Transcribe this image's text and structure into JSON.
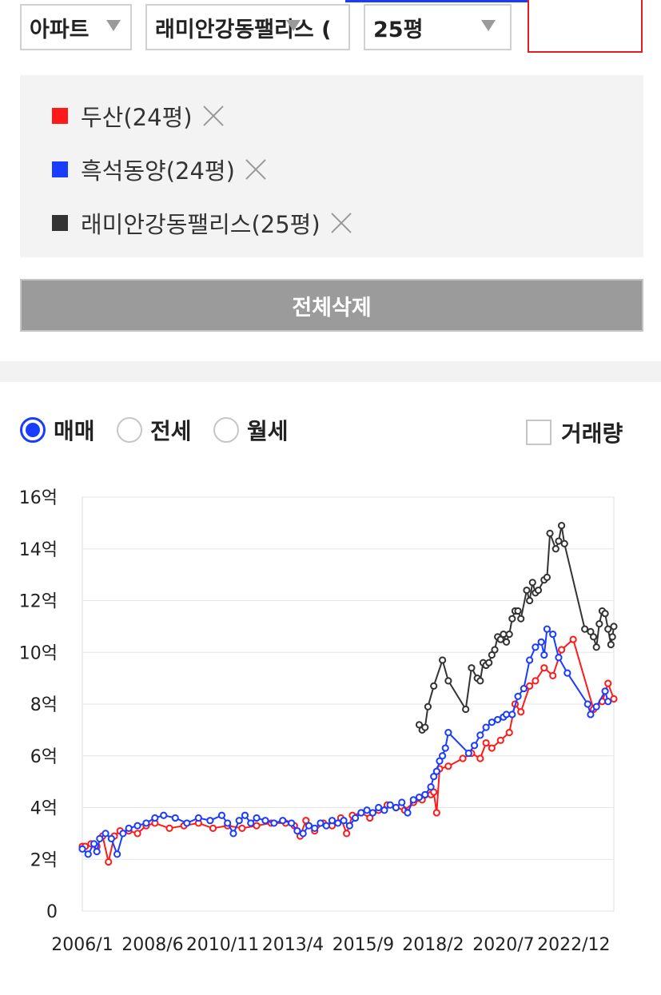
{
  "filters": {
    "type_label": "아파트",
    "complex_label": "래미안강동팰리스 (",
    "size_label": "25평"
  },
  "compare": {
    "items": [
      {
        "label": "두산(24평)",
        "color": "#ff1a1a"
      },
      {
        "label": "흑석동양(24평)",
        "color": "#1a3cff"
      },
      {
        "label": "래미안강동팰리스(25평)",
        "color": "#333333"
      }
    ],
    "delete_all_label": "전체삭제"
  },
  "deal_types": {
    "options": [
      "매매",
      "전세",
      "월세"
    ],
    "selected": "매매",
    "volume_label": "거래량",
    "volume_checked": false
  },
  "chart_data": {
    "type": "line",
    "ylim": [
      0,
      16
    ],
    "y_ticks": [
      0,
      2,
      4,
      6,
      8,
      10,
      12,
      14,
      16
    ],
    "y_tick_labels": [
      "0",
      "2억",
      "4억",
      "6억",
      "8억",
      "10억",
      "12억",
      "14억",
      "16억"
    ],
    "xlim": [
      2006.0,
      2024.3
    ],
    "x_ticks": [
      2006.0,
      2008.42,
      2010.83,
      2013.25,
      2015.67,
      2018.08,
      2020.5,
      2022.92
    ],
    "x_tick_labels": [
      "2006/1",
      "2008/6",
      "2010/11",
      "2013/4",
      "2015/9",
      "2018/2",
      "2020/7",
      "2022/12"
    ],
    "grid": true,
    "series": [
      {
        "name": "래미안강동팰리스(25평)",
        "color": "#333333",
        "points": [
          [
            2017.6,
            7.2
          ],
          [
            2017.7,
            7.0
          ],
          [
            2017.8,
            7.1
          ],
          [
            2017.9,
            7.9
          ],
          [
            2018.1,
            8.7
          ],
          [
            2018.4,
            9.7
          ],
          [
            2018.6,
            8.9
          ],
          [
            2019.2,
            7.8
          ],
          [
            2019.4,
            9.4
          ],
          [
            2019.6,
            9.0
          ],
          [
            2019.7,
            8.9
          ],
          [
            2019.8,
            9.6
          ],
          [
            2019.9,
            9.5
          ],
          [
            2020.0,
            9.6
          ],
          [
            2020.1,
            9.9
          ],
          [
            2020.2,
            10.1
          ],
          [
            2020.3,
            10.6
          ],
          [
            2020.4,
            10.5
          ],
          [
            2020.5,
            10.7
          ],
          [
            2020.6,
            10.4
          ],
          [
            2020.7,
            10.7
          ],
          [
            2020.8,
            11.3
          ],
          [
            2020.9,
            11.6
          ],
          [
            2021.0,
            11.6
          ],
          [
            2021.1,
            11.3
          ],
          [
            2021.3,
            12.4
          ],
          [
            2021.4,
            12.0
          ],
          [
            2021.5,
            12.7
          ],
          [
            2021.6,
            12.3
          ],
          [
            2021.7,
            12.4
          ],
          [
            2021.9,
            12.8
          ],
          [
            2022.0,
            12.9
          ],
          [
            2022.1,
            14.6
          ],
          [
            2022.3,
            14.0
          ],
          [
            2022.4,
            14.3
          ],
          [
            2022.5,
            14.9
          ],
          [
            2022.6,
            14.2
          ],
          [
            2023.3,
            10.9
          ],
          [
            2023.5,
            10.8
          ],
          [
            2023.6,
            10.6
          ],
          [
            2023.7,
            10.2
          ],
          [
            2023.8,
            11.1
          ],
          [
            2023.9,
            11.6
          ],
          [
            2024.0,
            11.5
          ],
          [
            2024.1,
            10.9
          ],
          [
            2024.2,
            10.3
          ],
          [
            2024.25,
            10.6
          ],
          [
            2024.3,
            11.0
          ]
        ]
      },
      {
        "name": "두산(24평)",
        "color": "#ff1a1a",
        "points": [
          [
            2006.0,
            2.5
          ],
          [
            2006.1,
            2.5
          ],
          [
            2006.3,
            2.6
          ],
          [
            2006.5,
            2.5
          ],
          [
            2006.7,
            2.9
          ],
          [
            2006.9,
            1.9
          ],
          [
            2007.1,
            2.9
          ],
          [
            2007.3,
            3.1
          ],
          [
            2007.6,
            3.1
          ],
          [
            2007.9,
            3.0
          ],
          [
            2008.2,
            3.3
          ],
          [
            2008.5,
            3.4
          ],
          [
            2009.0,
            3.2
          ],
          [
            2009.5,
            3.3
          ],
          [
            2010.0,
            3.4
          ],
          [
            2010.5,
            3.2
          ],
          [
            2011.0,
            3.3
          ],
          [
            2011.5,
            3.2
          ],
          [
            2012.0,
            3.3
          ],
          [
            2012.5,
            3.4
          ],
          [
            2013.0,
            3.4
          ],
          [
            2013.3,
            3.3
          ],
          [
            2013.5,
            2.9
          ],
          [
            2013.7,
            3.5
          ],
          [
            2014.0,
            3.1
          ],
          [
            2014.3,
            3.4
          ],
          [
            2014.6,
            3.3
          ],
          [
            2014.9,
            3.6
          ],
          [
            2015.1,
            3.0
          ],
          [
            2015.3,
            3.7
          ],
          [
            2015.6,
            3.8
          ],
          [
            2015.9,
            3.6
          ],
          [
            2016.2,
            3.9
          ],
          [
            2016.5,
            4.1
          ],
          [
            2016.8,
            4.0
          ],
          [
            2017.1,
            3.9
          ],
          [
            2017.4,
            4.2
          ],
          [
            2017.7,
            4.3
          ],
          [
            2018.0,
            4.5
          ],
          [
            2018.1,
            4.6
          ],
          [
            2018.2,
            3.8
          ],
          [
            2018.3,
            5.5
          ],
          [
            2018.6,
            5.6
          ],
          [
            2019.1,
            5.9
          ],
          [
            2019.4,
            6.1
          ],
          [
            2019.7,
            5.9
          ],
          [
            2019.9,
            6.5
          ],
          [
            2020.1,
            6.3
          ],
          [
            2020.4,
            6.6
          ],
          [
            2020.7,
            6.9
          ],
          [
            2020.9,
            8.0
          ],
          [
            2021.1,
            7.7
          ],
          [
            2021.4,
            8.7
          ],
          [
            2021.6,
            8.9
          ],
          [
            2021.9,
            9.4
          ],
          [
            2022.2,
            9.1
          ],
          [
            2022.5,
            10.1
          ],
          [
            2022.9,
            10.5
          ],
          [
            2023.6,
            7.8
          ],
          [
            2023.9,
            8.1
          ],
          [
            2024.1,
            8.8
          ],
          [
            2024.3,
            8.2
          ]
        ]
      },
      {
        "name": "흑석동양(24평)",
        "color": "#1a3cff",
        "points": [
          [
            2006.0,
            2.4
          ],
          [
            2006.2,
            2.2
          ],
          [
            2006.4,
            2.6
          ],
          [
            2006.5,
            2.3
          ],
          [
            2006.6,
            2.8
          ],
          [
            2006.8,
            3.0
          ],
          [
            2007.0,
            2.8
          ],
          [
            2007.2,
            2.2
          ],
          [
            2007.4,
            3.0
          ],
          [
            2007.6,
            3.2
          ],
          [
            2007.9,
            3.3
          ],
          [
            2008.2,
            3.4
          ],
          [
            2008.5,
            3.6
          ],
          [
            2008.8,
            3.7
          ],
          [
            2009.2,
            3.6
          ],
          [
            2009.6,
            3.4
          ],
          [
            2010.0,
            3.6
          ],
          [
            2010.4,
            3.5
          ],
          [
            2010.8,
            3.7
          ],
          [
            2011.0,
            3.4
          ],
          [
            2011.2,
            3.0
          ],
          [
            2011.4,
            3.5
          ],
          [
            2011.6,
            3.7
          ],
          [
            2011.8,
            3.4
          ],
          [
            2012.0,
            3.6
          ],
          [
            2012.3,
            3.5
          ],
          [
            2012.6,
            3.4
          ],
          [
            2012.9,
            3.5
          ],
          [
            2013.2,
            3.4
          ],
          [
            2013.4,
            3.1
          ],
          [
            2013.6,
            3.0
          ],
          [
            2013.8,
            3.3
          ],
          [
            2014.0,
            3.2
          ],
          [
            2014.2,
            3.4
          ],
          [
            2014.4,
            3.3
          ],
          [
            2014.6,
            3.5
          ],
          [
            2014.8,
            3.4
          ],
          [
            2015.0,
            3.5
          ],
          [
            2015.2,
            3.3
          ],
          [
            2015.4,
            3.6
          ],
          [
            2015.6,
            3.8
          ],
          [
            2015.8,
            3.9
          ],
          [
            2016.0,
            3.8
          ],
          [
            2016.2,
            4.0
          ],
          [
            2016.4,
            3.9
          ],
          [
            2016.6,
            4.1
          ],
          [
            2016.8,
            4.0
          ],
          [
            2017.0,
            4.2
          ],
          [
            2017.2,
            3.8
          ],
          [
            2017.4,
            4.3
          ],
          [
            2017.6,
            4.4
          ],
          [
            2017.8,
            4.5
          ],
          [
            2018.0,
            4.8
          ],
          [
            2018.1,
            5.2
          ],
          [
            2018.2,
            5.4
          ],
          [
            2018.3,
            5.8
          ],
          [
            2018.4,
            6.0
          ],
          [
            2018.5,
            6.3
          ],
          [
            2018.6,
            6.9
          ],
          [
            2019.3,
            6.1
          ],
          [
            2019.5,
            6.4
          ],
          [
            2019.7,
            6.8
          ],
          [
            2019.9,
            7.1
          ],
          [
            2020.1,
            7.3
          ],
          [
            2020.3,
            7.4
          ],
          [
            2020.5,
            7.5
          ],
          [
            2020.6,
            7.6
          ],
          [
            2020.8,
            7.6
          ],
          [
            2021.0,
            8.3
          ],
          [
            2021.2,
            8.6
          ],
          [
            2021.4,
            9.7
          ],
          [
            2021.6,
            10.2
          ],
          [
            2021.8,
            10.4
          ],
          [
            2021.9,
            9.9
          ],
          [
            2022.0,
            10.9
          ],
          [
            2022.2,
            10.7
          ],
          [
            2022.4,
            9.8
          ],
          [
            2022.7,
            9.2
          ],
          [
            2023.4,
            8.0
          ],
          [
            2023.5,
            7.6
          ],
          [
            2023.7,
            7.9
          ],
          [
            2024.0,
            8.5
          ],
          [
            2024.1,
            8.1
          ]
        ]
      }
    ]
  }
}
